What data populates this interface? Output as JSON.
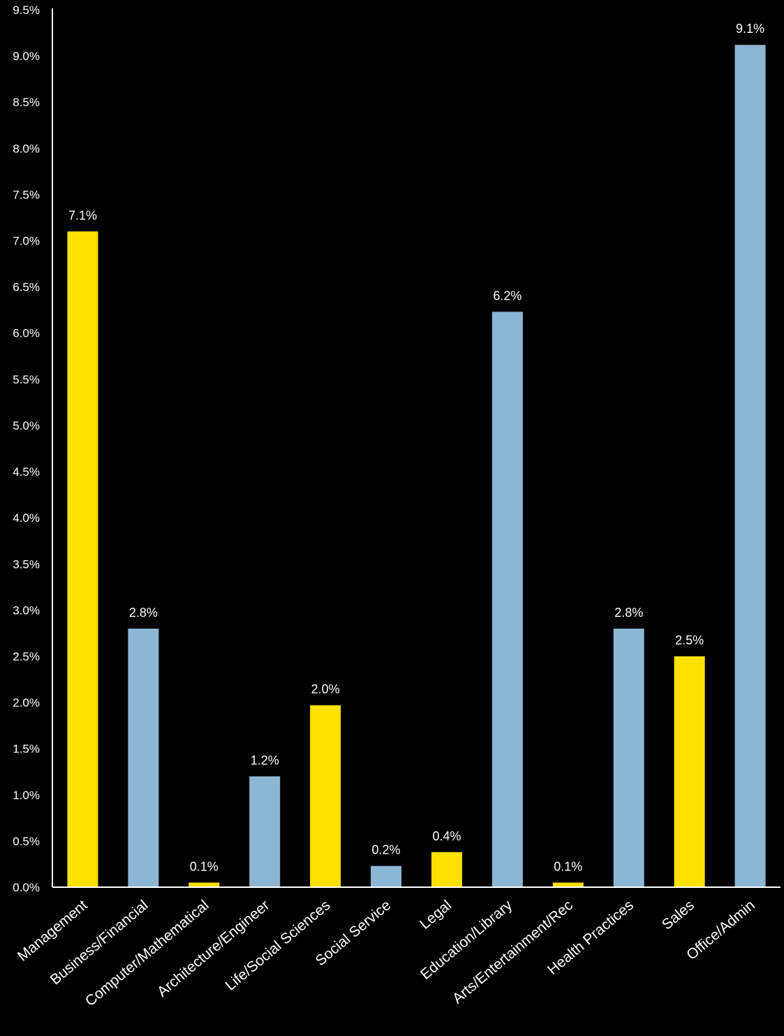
{
  "chart_data": {
    "type": "bar",
    "categories": [
      "Management",
      "Business/Financial",
      "Computer/Mathematical",
      "Architecture/Engineer",
      "Life/Social Sciences",
      "Social Service",
      "Legal",
      "Education/Library",
      "Arts/Entertainment/Rec",
      "Health Practices",
      "Sales",
      "Office/Admin"
    ],
    "values": [
      7.1,
      2.8,
      0.05,
      1.2,
      1.97,
      0.23,
      0.38,
      6.23,
      0.05,
      2.8,
      2.5,
      9.12
    ],
    "data_labels": [
      "7.1%",
      "2.8%",
      "0.1%",
      "1.2%",
      "2.0%",
      "0.2%",
      "0.4%",
      "6.2%",
      "0.1%",
      "2.8%",
      "2.5%",
      "9.1%"
    ],
    "bar_colors": [
      "#FFE100",
      "#8DB6D4",
      "#FFE100",
      "#8DB6D4",
      "#FFE100",
      "#8DB6D4",
      "#FFE100",
      "#8DB6D4",
      "#FFE100",
      "#8DB6D4",
      "#FFE100",
      "#8DB6D4"
    ],
    "y_ticks": [
      "0.0%",
      "0.5%",
      "1.0%",
      "1.5%",
      "2.0%",
      "2.5%",
      "3.0%",
      "3.5%",
      "4.0%",
      "4.5%",
      "5.0%",
      "5.5%",
      "6.0%",
      "6.5%",
      "7.0%",
      "7.5%",
      "8.0%",
      "8.5%",
      "9.0%",
      "9.5%"
    ],
    "ylim": [
      0,
      9.5
    ],
    "title": "",
    "xlabel": "",
    "ylabel": "",
    "grid": false,
    "legend": "none",
    "background": "#000000",
    "axis_color": "#ffffff"
  }
}
